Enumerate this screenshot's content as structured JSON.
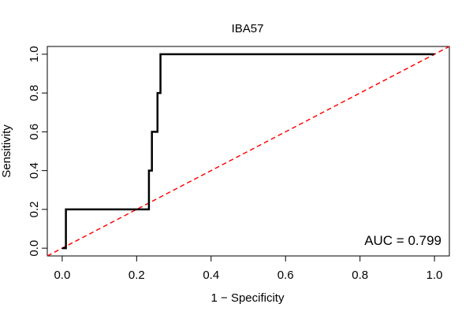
{
  "chart_data": {
    "type": "line",
    "title": "IBA57",
    "xlabel": "1 − Specificity",
    "ylabel": "Sensitivity",
    "xlim": [
      -0.04,
      1.04
    ],
    "ylim": [
      -0.04,
      1.04
    ],
    "x_ticks": [
      0.0,
      0.2,
      0.4,
      0.6,
      0.8,
      1.0
    ],
    "x_tick_labels": [
      "0.0",
      "0.2",
      "0.4",
      "0.6",
      "0.8",
      "1.0"
    ],
    "y_ticks": [
      0.0,
      0.2,
      0.4,
      0.6,
      0.8,
      1.0
    ],
    "y_tick_labels": [
      "0.0",
      "0.2",
      "0.4",
      "0.6",
      "0.8",
      "1.0"
    ],
    "grid": false,
    "series": [
      {
        "color": "#000000",
        "style": "solid",
        "x": [
          0.0,
          0.01,
          0.01,
          0.012,
          0.012,
          0.233,
          0.233,
          0.237,
          0.237,
          0.241,
          0.241,
          0.256,
          0.256,
          0.26,
          0.26,
          0.264,
          0.264,
          1.0
        ],
        "y": [
          0.0,
          0.0,
          0.2,
          0.2,
          0.2,
          0.2,
          0.4,
          0.4,
          0.4,
          0.4,
          0.6,
          0.6,
          0.8,
          0.8,
          0.8,
          0.8,
          1.0,
          1.0
        ]
      },
      {
        "color": "#ff0000",
        "style": "dashed",
        "x": [
          -0.04,
          1.04
        ],
        "y": [
          -0.04,
          1.04
        ]
      }
    ],
    "annotation": "AUC = 0.799"
  }
}
